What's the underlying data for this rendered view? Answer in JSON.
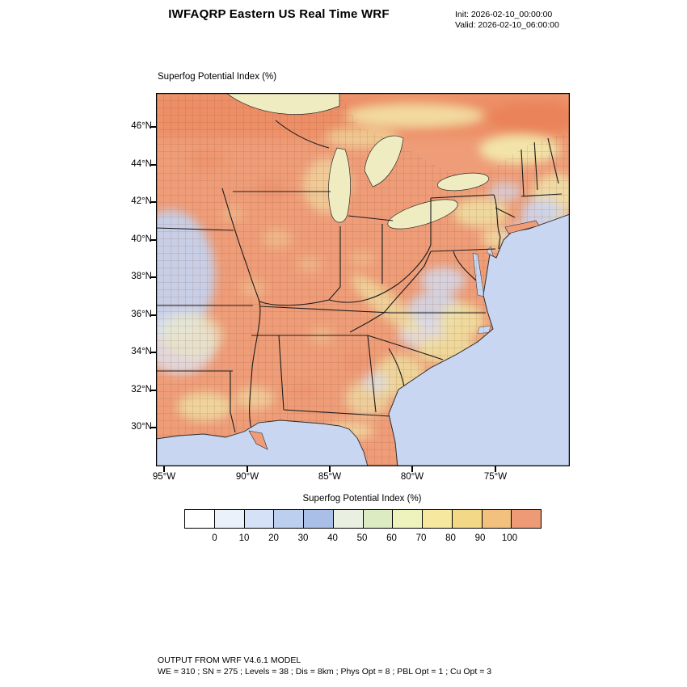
{
  "header": {
    "title": "IWFAQRP Eastern US Real Time WRF",
    "init": "Init: 2026-02-10_00:00:00",
    "valid": "Valid: 2026-02-10_06:00:00"
  },
  "map": {
    "label": "Superfog Potential Index   (%)",
    "lat_ticks": [
      "46°N",
      "44°N",
      "42°N",
      "40°N",
      "38°N",
      "36°N",
      "34°N",
      "32°N",
      "30°N"
    ],
    "lon_ticks": [
      "95°W",
      "90°W",
      "85°W",
      "80°W",
      "75°W"
    ]
  },
  "colorbar": {
    "title": "Superfog Potential Index  (%)",
    "ticks": [
      "0",
      "10",
      "20",
      "30",
      "40",
      "50",
      "60",
      "70",
      "80",
      "90",
      "100"
    ],
    "colors": [
      "#ffffff",
      "#eaf1fb",
      "#d4e1f6",
      "#bccfef",
      "#a9bfe8",
      "#e9f0e2",
      "#dcebc2",
      "#eef2bc",
      "#f6e89e",
      "#f3d887",
      "#f2c17d",
      "#ef9a76"
    ]
  },
  "footer": {
    "line1": "OUTPUT FROM WRF V4.6.1 MODEL",
    "line2": "WE = 310 ; SN = 275 ; Levels = 38 ; Dis = 8km ; Phys Opt = 8 ; PBL Opt = 1 ; Cu Opt = 3"
  },
  "map_colors": {
    "land_high": "#ef9d78",
    "ocean": "#c9d6f1",
    "lake": "#f0ecc2"
  }
}
